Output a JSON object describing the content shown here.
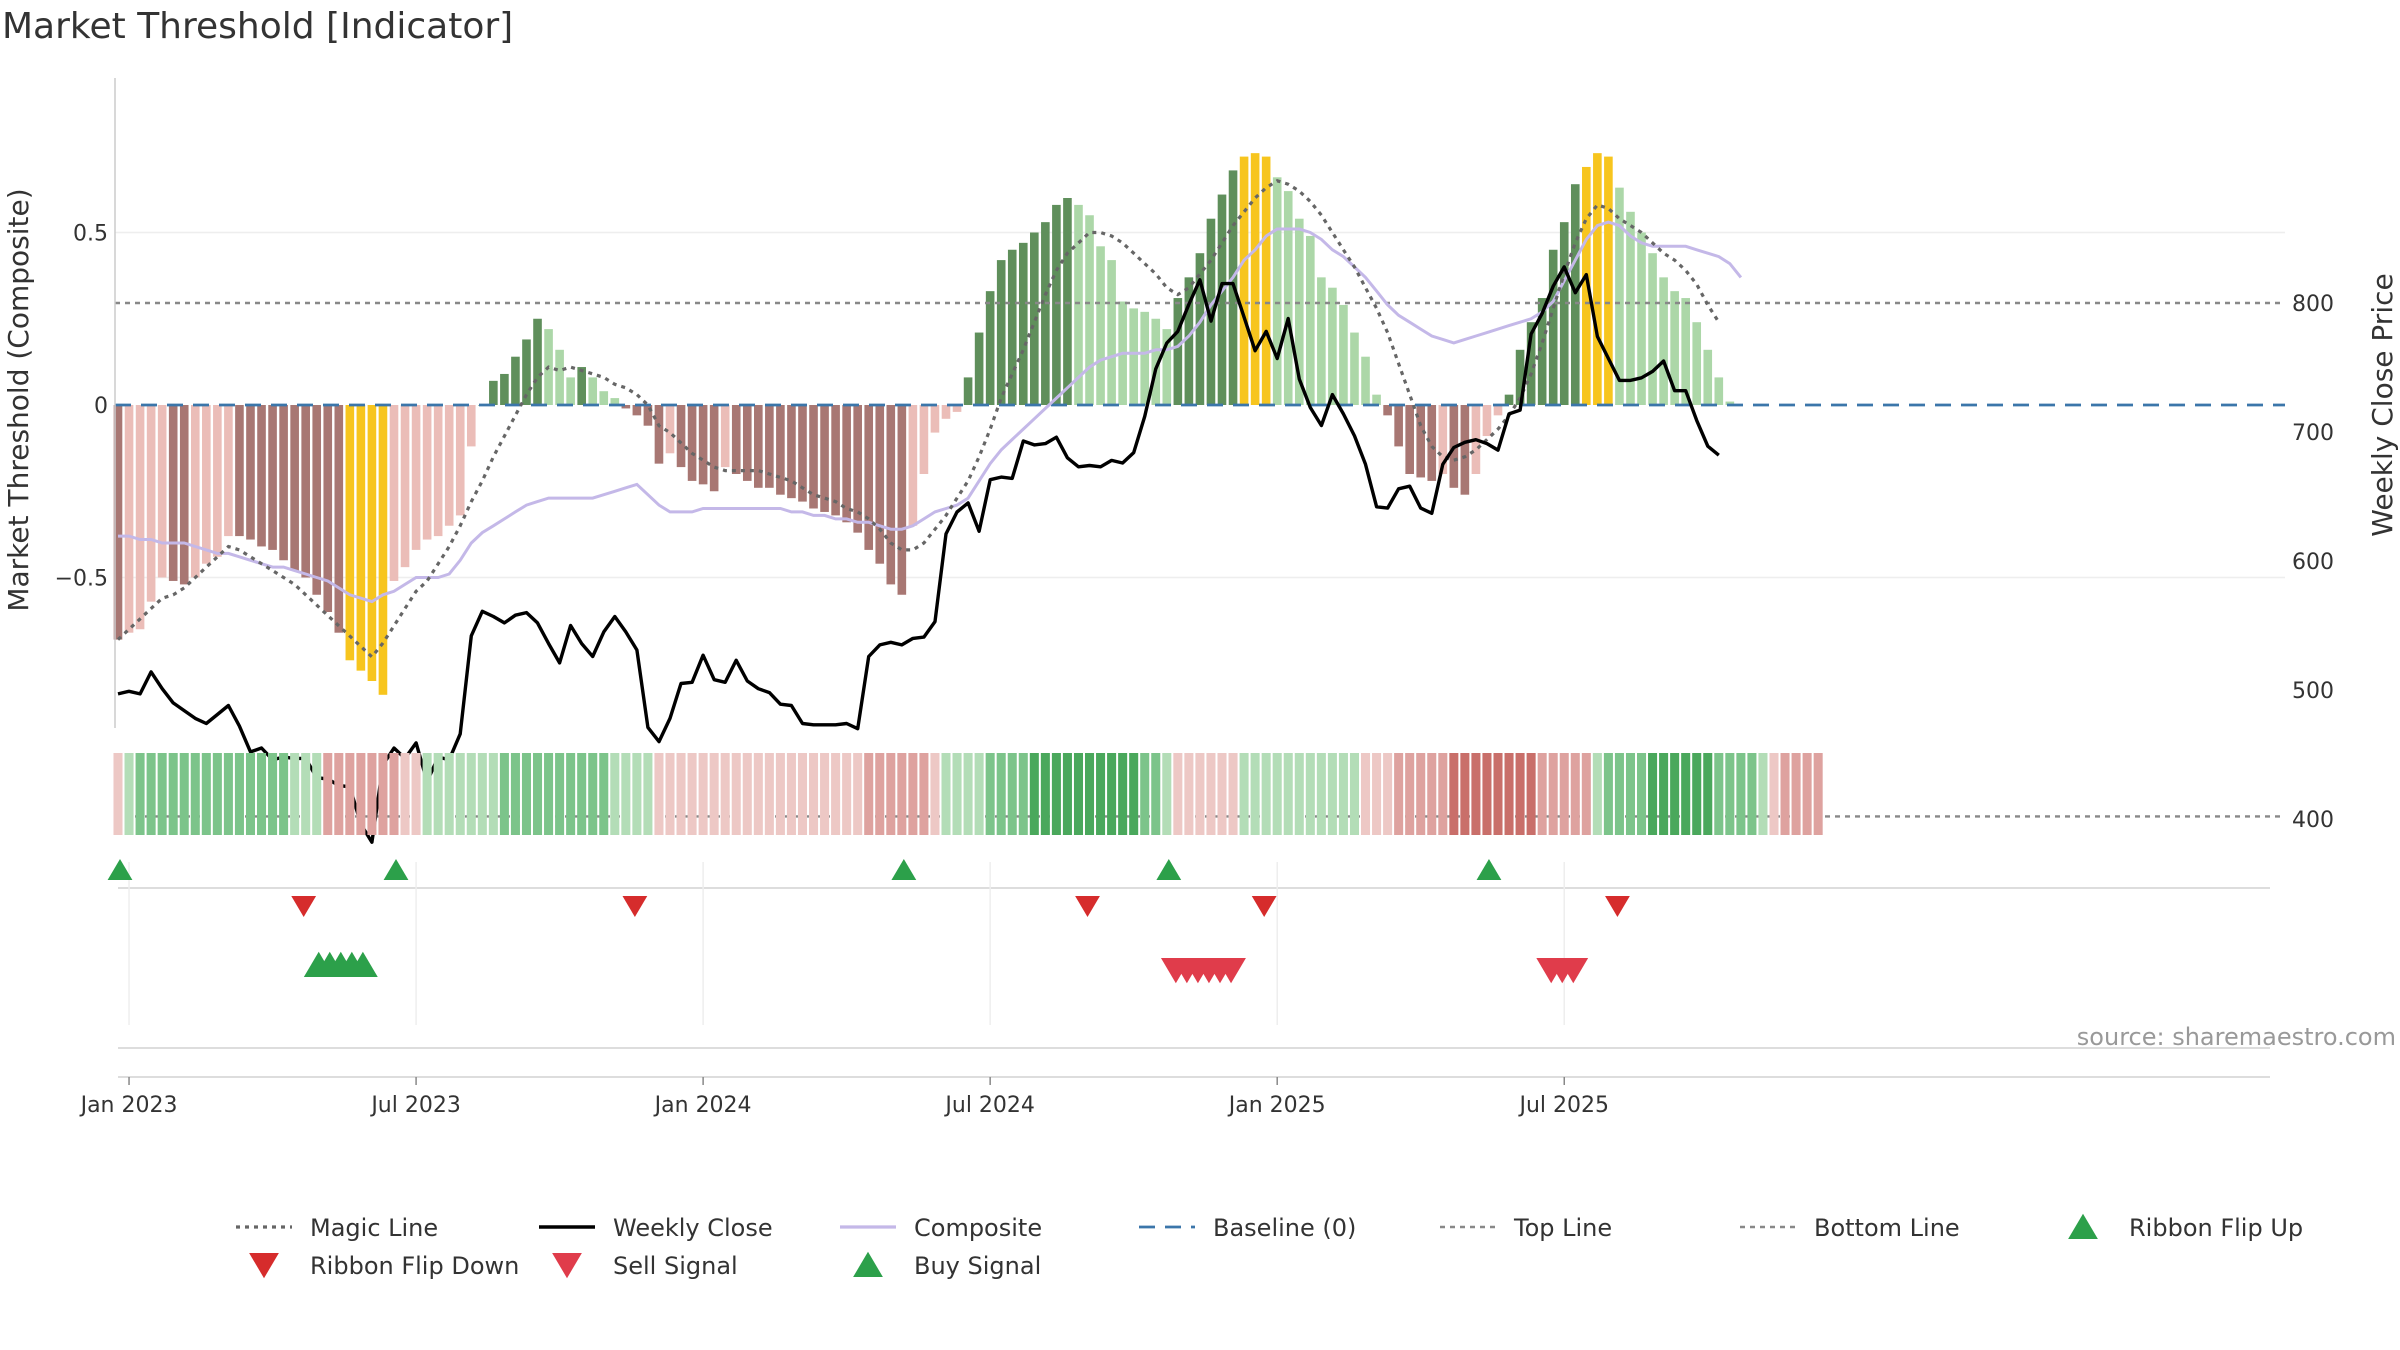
{
  "chart_data": {
    "type": "bar",
    "title": "Market Threshold [Indicator]",
    "ylabel_left": "Market Threshold (Composite)",
    "ylabel_right": "Weekly Close Price",
    "ylim_left": [
      -0.87,
      0.95
    ],
    "ylim_right": [
      350,
      850
    ],
    "left_ticks": [
      {
        "value": 0.5,
        "label": "0.5"
      },
      {
        "value": 0,
        "label": "0"
      },
      {
        "value": -0.5,
        "label": "−0.5"
      }
    ],
    "right_ticks": [
      {
        "value": 800,
        "label": "800"
      },
      {
        "value": 700,
        "label": "700"
      },
      {
        "value": 600,
        "label": "600"
      },
      {
        "value": 500,
        "label": "500"
      },
      {
        "value": 400,
        "label": "400"
      }
    ],
    "x_ticks": [
      {
        "week": 1,
        "label": "Jan 2023"
      },
      {
        "week": 27,
        "label": "Jul 2023"
      },
      {
        "week": 53,
        "label": "Jan 2024"
      },
      {
        "week": 79,
        "label": "Jul 2024"
      },
      {
        "week": 105,
        "label": "Jan 2025"
      },
      {
        "week": 131,
        "label": "Jul 2025"
      }
    ],
    "top_line_price": 800,
    "bottom_line_price": 402,
    "baseline": 0,
    "composite_bars": [
      -0.68,
      -0.66,
      -0.65,
      -0.57,
      -0.5,
      -0.51,
      -0.52,
      -0.5,
      -0.46,
      -0.44,
      -0.38,
      -0.38,
      -0.39,
      -0.41,
      -0.42,
      -0.45,
      -0.48,
      -0.5,
      -0.55,
      -0.6,
      -0.66,
      -0.74,
      -0.77,
      -0.8,
      -0.84,
      -0.51,
      -0.47,
      -0.42,
      -0.39,
      -0.38,
      -0.35,
      -0.32,
      -0.12,
      0.0,
      0.07,
      0.09,
      0.14,
      0.19,
      0.25,
      0.22,
      0.16,
      0.08,
      0.11,
      0.08,
      0.04,
      0.02,
      -0.01,
      -0.03,
      -0.06,
      -0.17,
      -0.14,
      -0.18,
      -0.22,
      -0.23,
      -0.25,
      -0.18,
      -0.2,
      -0.22,
      -0.24,
      -0.24,
      -0.26,
      -0.27,
      -0.28,
      -0.3,
      -0.31,
      -0.32,
      -0.34,
      -0.37,
      -0.42,
      -0.46,
      -0.52,
      -0.55,
      -0.35,
      -0.2,
      -0.08,
      -0.04,
      -0.02,
      0.08,
      0.21,
      0.33,
      0.42,
      0.45,
      0.47,
      0.5,
      0.53,
      0.58,
      0.6,
      0.58,
      0.55,
      0.46,
      0.42,
      0.3,
      0.28,
      0.27,
      0.25,
      0.22,
      0.31,
      0.37,
      0.44,
      0.54,
      0.61,
      0.68,
      0.72,
      0.73,
      0.72,
      0.66,
      0.62,
      0.54,
      0.49,
      0.37,
      0.34,
      0.29,
      0.21,
      0.14,
      0.03,
      -0.03,
      -0.12,
      -0.2,
      -0.21,
      -0.22,
      -0.2,
      -0.24,
      -0.26,
      -0.2,
      -0.09,
      -0.03,
      0.03,
      0.16,
      0.24,
      0.31,
      0.45,
      0.53,
      0.64,
      0.69,
      0.73,
      0.72,
      0.63,
      0.56,
      0.5,
      0.44,
      0.37,
      0.33,
      0.31,
      0.24,
      0.16,
      0.08,
      0.01
    ],
    "series": [
      {
        "name": "Weekly Close",
        "values": [
          497,
          499,
          497,
          514,
          501,
          490,
          484,
          478,
          474,
          481,
          488,
          472,
          452,
          455,
          446,
          448,
          447,
          447,
          432,
          431,
          426,
          425,
          396,
          382,
          442,
          455,
          447,
          459,
          429,
          448,
          446,
          466,
          542,
          561,
          557,
          552,
          558,
          560,
          552,
          536,
          521,
          550,
          536,
          526,
          545,
          557,
          545,
          531,
          471,
          460,
          478,
          505,
          506,
          527,
          508,
          506,
          523,
          507,
          501,
          498,
          489,
          488,
          474,
          473,
          473,
          473,
          474,
          470,
          526,
          535,
          537,
          535,
          540,
          541,
          553,
          621,
          638,
          645,
          623,
          663,
          665,
          664,
          693,
          690,
          691,
          696,
          680,
          673,
          674,
          673,
          678,
          676,
          684,
          712,
          749,
          769,
          778,
          799,
          818,
          786,
          815,
          815,
          789,
          763,
          778,
          757,
          788,
          741,
          719,
          705,
          729,
          714,
          697,
          675,
          642,
          641,
          656,
          658,
          641,
          637,
          675,
          688,
          692,
          694,
          691,
          686,
          714,
          717,
          776,
          792,
          813,
          828,
          808,
          822,
          774,
          757,
          740,
          740,
          742,
          747,
          755,
          732,
          732,
          709,
          689,
          682
        ],
        "color": "#000000"
      },
      {
        "name": "Composite",
        "values": [
          -0.38,
          -0.38,
          -0.39,
          -0.39,
          -0.4,
          -0.4,
          -0.4,
          -0.41,
          -0.42,
          -0.43,
          -0.43,
          -0.44,
          -0.45,
          -0.46,
          -0.47,
          -0.47,
          -0.48,
          -0.49,
          -0.5,
          -0.51,
          -0.53,
          -0.55,
          -0.56,
          -0.57,
          -0.55,
          -0.54,
          -0.52,
          -0.5,
          -0.5,
          -0.5,
          -0.49,
          -0.45,
          -0.4,
          -0.37,
          -0.35,
          -0.33,
          -0.31,
          -0.29,
          -0.28,
          -0.27,
          -0.27,
          -0.27,
          -0.27,
          -0.27,
          -0.26,
          -0.25,
          -0.24,
          -0.23,
          -0.26,
          -0.29,
          -0.31,
          -0.31,
          -0.31,
          -0.3,
          -0.3,
          -0.3,
          -0.3,
          -0.3,
          -0.3,
          -0.3,
          -0.3,
          -0.31,
          -0.31,
          -0.32,
          -0.32,
          -0.33,
          -0.33,
          -0.34,
          -0.34,
          -0.35,
          -0.36,
          -0.36,
          -0.35,
          -0.33,
          -0.31,
          -0.3,
          -0.29,
          -0.27,
          -0.22,
          -0.17,
          -0.13,
          -0.1,
          -0.07,
          -0.04,
          -0.01,
          0.02,
          0.05,
          0.08,
          0.11,
          0.13,
          0.14,
          0.15,
          0.15,
          0.15,
          0.16,
          0.16,
          0.17,
          0.2,
          0.24,
          0.29,
          0.33,
          0.37,
          0.42,
          0.45,
          0.49,
          0.51,
          0.51,
          0.51,
          0.5,
          0.48,
          0.45,
          0.43,
          0.4,
          0.37,
          0.33,
          0.29,
          0.26,
          0.24,
          0.22,
          0.2,
          0.19,
          0.18,
          0.19,
          0.2,
          0.21,
          0.22,
          0.23,
          0.24,
          0.25,
          0.27,
          0.3,
          0.36,
          0.42,
          0.48,
          0.52,
          0.53,
          0.52,
          0.49,
          0.47,
          0.46,
          0.46,
          0.46,
          0.46,
          0.45,
          0.44,
          0.43,
          0.41,
          0.37
        ],
        "color": "#c4b8e8"
      },
      {
        "name": "Magic Line",
        "values": [
          -0.68,
          -0.65,
          -0.62,
          -0.59,
          -0.56,
          -0.55,
          -0.53,
          -0.5,
          -0.47,
          -0.44,
          -0.41,
          -0.42,
          -0.44,
          -0.46,
          -0.48,
          -0.5,
          -0.52,
          -0.55,
          -0.58,
          -0.61,
          -0.64,
          -0.67,
          -0.7,
          -0.73,
          -0.69,
          -0.64,
          -0.59,
          -0.54,
          -0.51,
          -0.46,
          -0.41,
          -0.35,
          -0.28,
          -0.22,
          -0.15,
          -0.09,
          -0.03,
          0.03,
          0.08,
          0.11,
          0.1,
          0.11,
          0.1,
          0.09,
          0.08,
          0.06,
          0.05,
          0.03,
          0.0,
          -0.06,
          -0.08,
          -0.11,
          -0.14,
          -0.16,
          -0.18,
          -0.19,
          -0.19,
          -0.19,
          -0.19,
          -0.2,
          -0.21,
          -0.22,
          -0.24,
          -0.26,
          -0.27,
          -0.28,
          -0.3,
          -0.31,
          -0.33,
          -0.36,
          -0.4,
          -0.42,
          -0.42,
          -0.4,
          -0.36,
          -0.32,
          -0.27,
          -0.22,
          -0.15,
          -0.07,
          0.02,
          0.09,
          0.16,
          0.24,
          0.32,
          0.39,
          0.44,
          0.47,
          0.5,
          0.5,
          0.49,
          0.47,
          0.44,
          0.41,
          0.38,
          0.34,
          0.32,
          0.34,
          0.38,
          0.42,
          0.47,
          0.52,
          0.56,
          0.6,
          0.63,
          0.65,
          0.64,
          0.62,
          0.59,
          0.55,
          0.5,
          0.45,
          0.4,
          0.34,
          0.28,
          0.21,
          0.12,
          0.03,
          -0.06,
          -0.12,
          -0.15,
          -0.16,
          -0.15,
          -0.13,
          -0.1,
          -0.07,
          -0.03,
          0.02,
          0.09,
          0.18,
          0.28,
          0.38,
          0.47,
          0.54,
          0.58,
          0.57,
          0.54,
          0.52,
          0.5,
          0.47,
          0.44,
          0.42,
          0.39,
          0.35,
          0.29,
          0.24
        ],
        "color": "#666666"
      }
    ],
    "ribbon_states": [
      -1,
      1,
      2,
      2,
      2,
      2,
      2,
      2,
      2,
      2,
      2,
      2,
      2,
      2,
      2,
      2,
      1,
      1,
      1,
      -2,
      -2,
      -2,
      -2,
      -2,
      -2,
      -2,
      -1,
      -1,
      1,
      1,
      1,
      1,
      1,
      1,
      1,
      2,
      2,
      2,
      2,
      2,
      2,
      2,
      2,
      2,
      2,
      1,
      1,
      1,
      1,
      -1,
      -1,
      -1,
      -1,
      -1,
      -1,
      -1,
      -1,
      -1,
      -1,
      -1,
      -1,
      -1,
      -1,
      -1,
      -1,
      -1,
      -1,
      -1,
      -2,
      -2,
      -2,
      -2,
      -2,
      -2,
      -1,
      1,
      1,
      1,
      1,
      2,
      2,
      2,
      2,
      3,
      3,
      3,
      3,
      3,
      3,
      3,
      3,
      3,
      3,
      2,
      2,
      1,
      -1,
      -1,
      -1,
      -1,
      -1,
      -1,
      1,
      1,
      1,
      1,
      1,
      1,
      1,
      1,
      1,
      1,
      1,
      -1,
      -1,
      -1,
      -2,
      -2,
      -2,
      -2,
      -2,
      -3,
      -3,
      -3,
      -3,
      -3,
      -3,
      -3,
      -3,
      -2,
      -2,
      -2,
      -2,
      -2,
      1,
      2,
      2,
      2,
      2,
      3,
      3,
      3,
      3,
      3,
      3,
      2,
      2,
      2,
      2,
      1,
      -1,
      -2,
      -2,
      -2,
      -2
    ],
    "ribbon_flip_up_weeks": [
      0,
      25,
      71,
      95,
      124
    ],
    "ribbon_flip_down_weeks": [
      17,
      47,
      88,
      104,
      136
    ],
    "buy_signal_weeks": [
      18,
      19,
      20,
      21,
      22
    ],
    "sell_signal_weeks": [
      96,
      97,
      98,
      99,
      100,
      101,
      130,
      131,
      132
    ],
    "colors": {
      "bar_pos_dark": "#5f8f5b",
      "bar_pos_light": "#acd7a8",
      "bar_neg_dark": "#a87773",
      "bar_neg_light": "#ebbdb8",
      "bar_extreme": "#f7c51e",
      "composite": "#c4b8e8",
      "baseline": "#3b76aa",
      "grid": "#eeeeee",
      "up_marker": "#2ca04a",
      "down_marker": "#d62c2c",
      "sell_marker": "#e03c4b"
    },
    "legend": [
      {
        "name": "Magic Line",
        "style": "dotted-gray"
      },
      {
        "name": "Weekly Close",
        "style": "solid-black"
      },
      {
        "name": "Composite",
        "style": "solid-lavender"
      },
      {
        "name": "Baseline (0)",
        "style": "dashed-blue"
      },
      {
        "name": "Top Line",
        "style": "dashed-gray"
      },
      {
        "name": "Bottom Line",
        "style": "dashed-gray"
      },
      {
        "name": "Ribbon Flip Up",
        "style": "triangle-up-green"
      },
      {
        "name": "Ribbon Flip Down",
        "style": "triangle-down-red"
      },
      {
        "name": "Sell Signal",
        "style": "triangle-down-red"
      },
      {
        "name": "Buy Signal",
        "style": "triangle-up-green"
      }
    ],
    "source": "source: sharemaestro.com"
  }
}
